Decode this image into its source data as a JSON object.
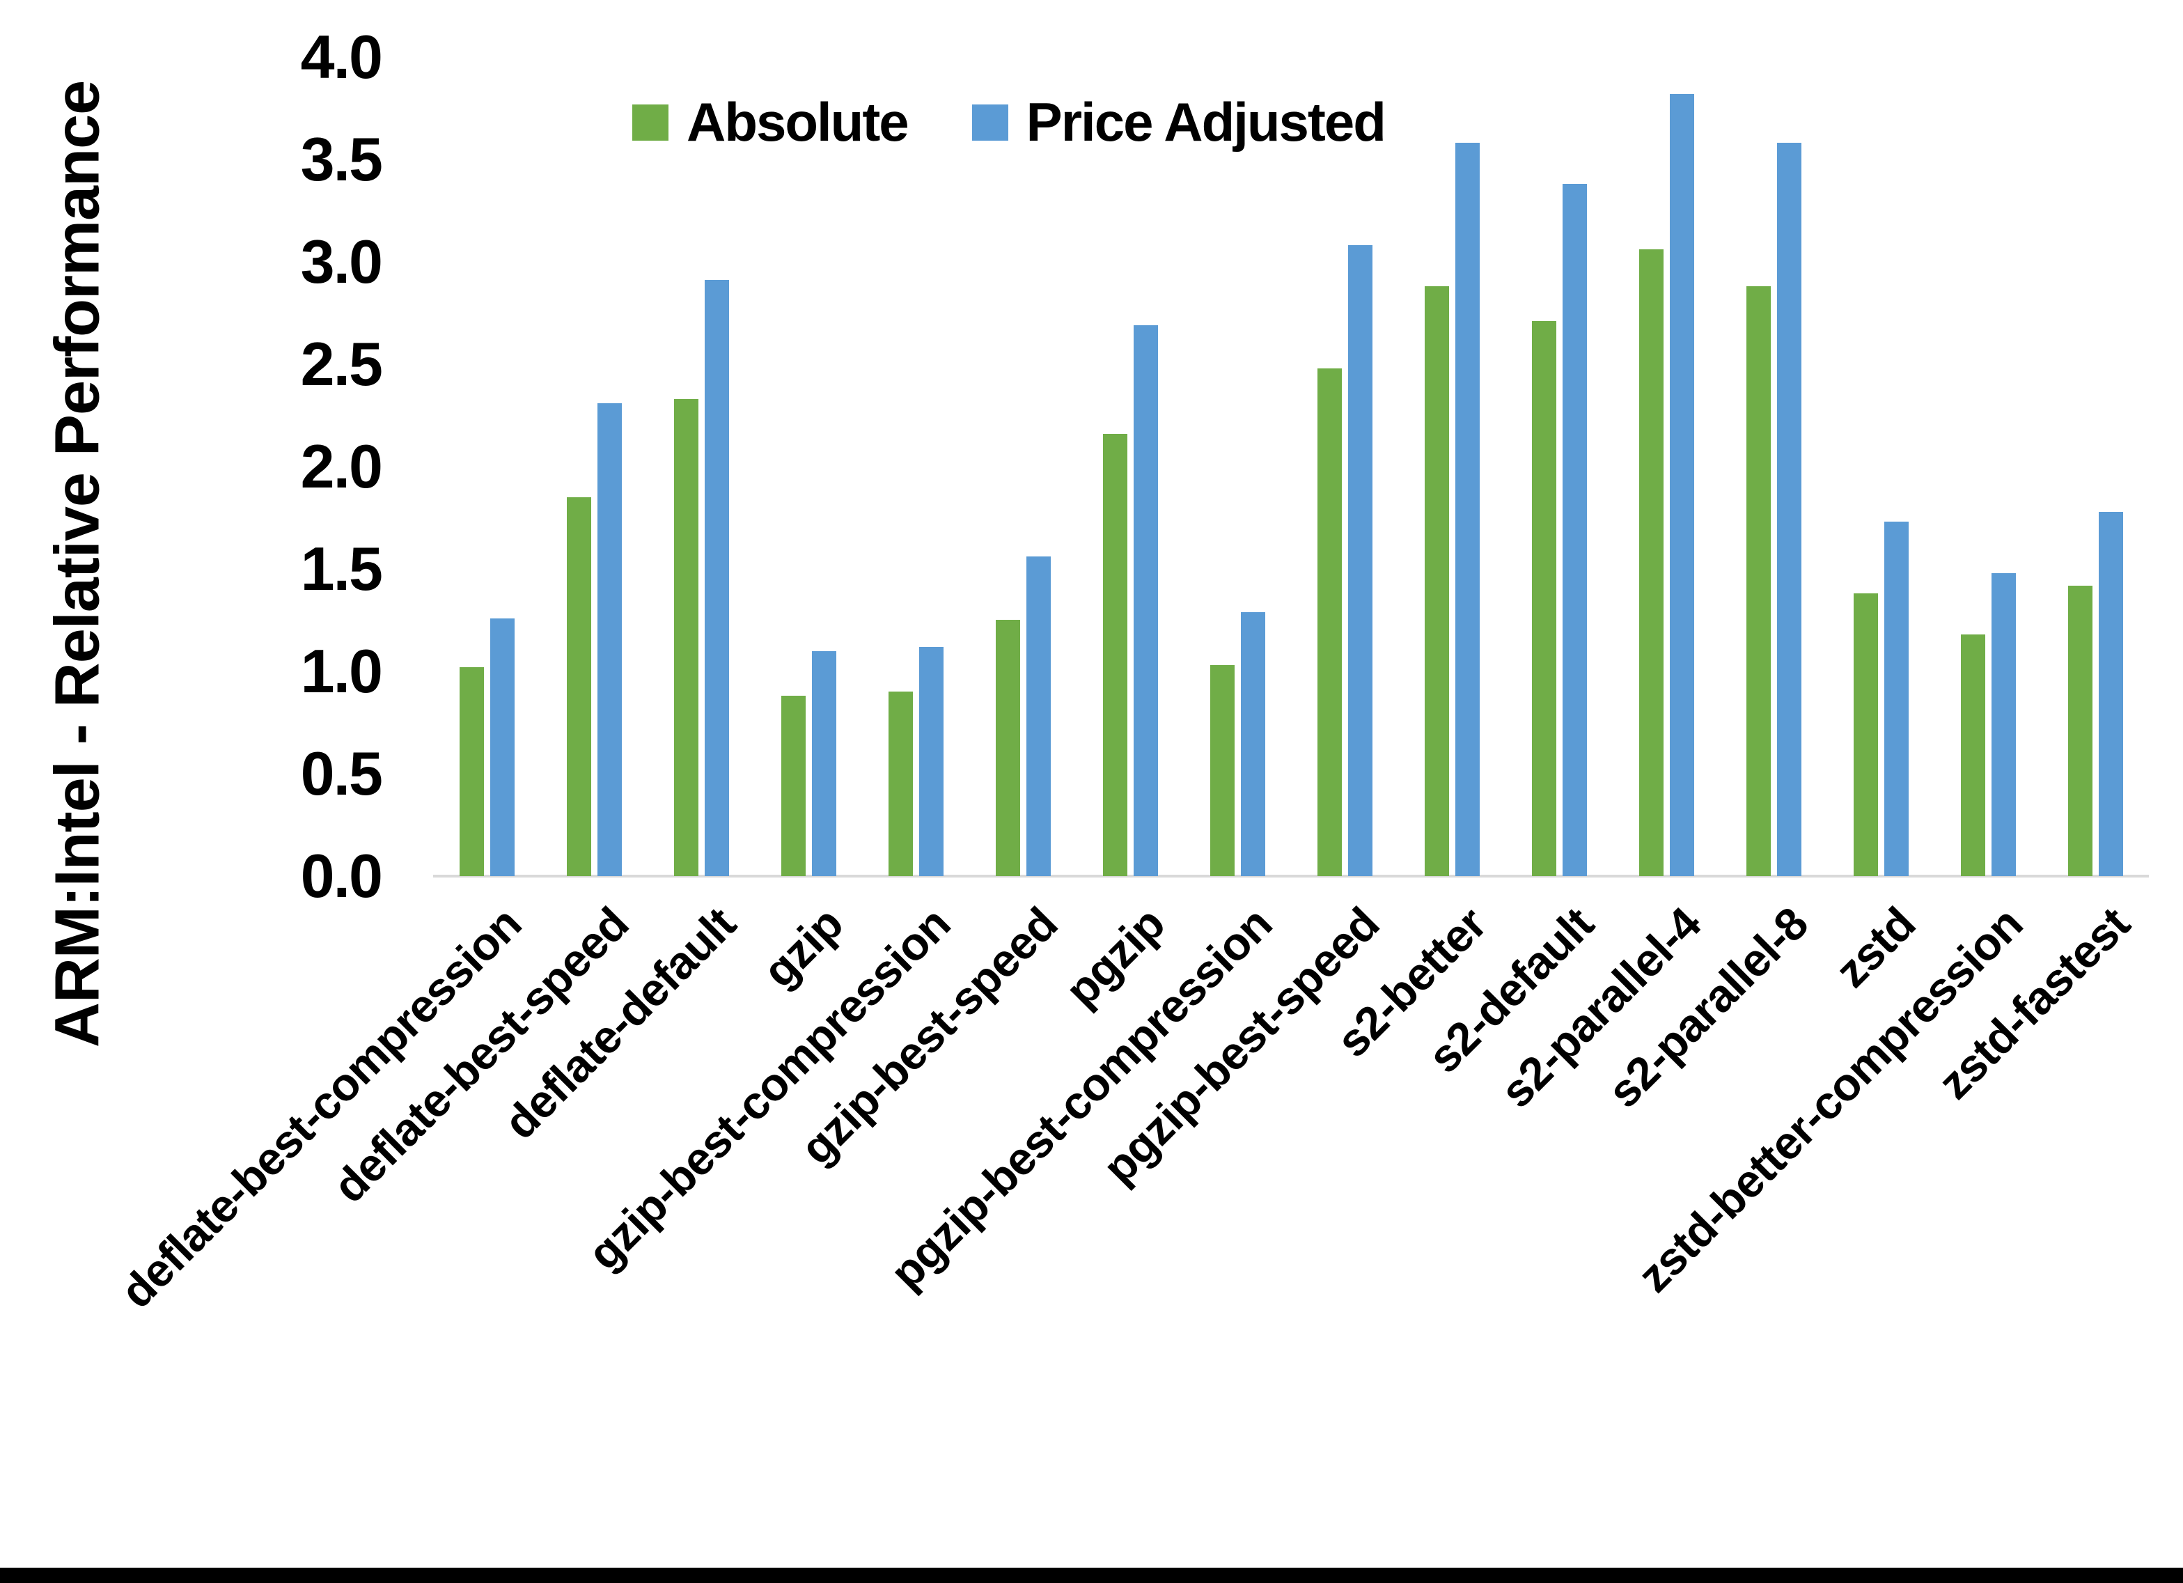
{
  "chart_data": {
    "type": "bar",
    "title": "",
    "xlabel": "",
    "ylabel": "ARM:Intel - Relative Performance",
    "categories": [
      "deflate-best-compression",
      "deflate-best-speed",
      "deflate-default",
      "gzip",
      "gzip-best-compression",
      "gzip-best-speed",
      "pgzip",
      "pgzip-best-compression",
      "pgzip-best-speed",
      "s2-better",
      "s2-default",
      "s2-parallel-4",
      "s2-parallel-8",
      "zstd",
      "zstd-better-compression",
      "zstd-fastest"
    ],
    "series": [
      {
        "name": "Absolute",
        "color": "#70AD47",
        "values": [
          1.02,
          1.85,
          2.33,
          0.88,
          0.9,
          1.25,
          2.16,
          1.03,
          2.48,
          2.88,
          2.71,
          3.06,
          2.88,
          1.38,
          1.18,
          1.42
        ]
      },
      {
        "name": "Price Adjusted",
        "color": "#5B9BD5",
        "values": [
          1.26,
          2.31,
          2.91,
          1.1,
          1.12,
          1.56,
          2.69,
          1.29,
          3.08,
          3.58,
          3.38,
          3.82,
          3.58,
          1.73,
          1.48,
          1.78
        ]
      }
    ],
    "ylim": [
      0.0,
      4.0
    ],
    "ytick_step": 0.5,
    "yticks": [
      "0.0",
      "0.5",
      "1.0",
      "1.5",
      "2.0",
      "2.5",
      "3.0",
      "3.5",
      "4.0"
    ],
    "legend_position": "top",
    "grid": false,
    "axis_line_color": "#d9d9d9",
    "text_color": "#000000",
    "background_color": "#ffffff",
    "bottom_border_color": "#000000"
  }
}
